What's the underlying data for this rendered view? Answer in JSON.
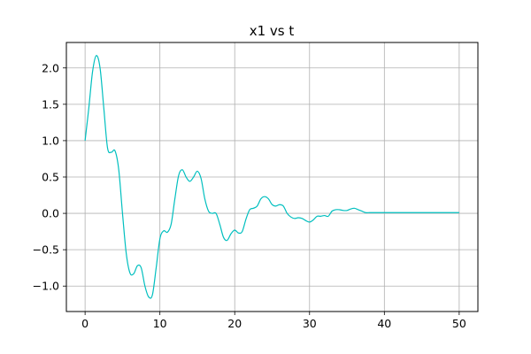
{
  "chart_data": {
    "type": "line",
    "title": "x1 vs t",
    "xlabel": "",
    "ylabel": "",
    "xlim": [
      -2.5,
      52.5
    ],
    "ylim": [
      -1.35,
      2.35
    ],
    "xticks": [
      0,
      10,
      20,
      30,
      40,
      50
    ],
    "xtick_labels": [
      "0",
      "10",
      "20",
      "30",
      "40",
      "50"
    ],
    "yticks": [
      -1.0,
      -0.5,
      0.0,
      0.5,
      1.0,
      1.5,
      2.0
    ],
    "ytick_labels": [
      "−1.0",
      "−0.5",
      "0.0",
      "0.5",
      "1.0",
      "1.5",
      "2.0"
    ],
    "grid": true,
    "legend": "none",
    "series": [
      {
        "color": "#00bfbf",
        "x": [
          0,
          0.5,
          1.0,
          1.5,
          2.0,
          2.5,
          3.0,
          3.5,
          4.0,
          4.5,
          5.0,
          5.5,
          6.0,
          6.5,
          7.0,
          7.5,
          8.0,
          8.5,
          9.0,
          9.5,
          10.0,
          10.5,
          11.0,
          11.5,
          12.0,
          12.5,
          13.0,
          13.5,
          14.0,
          14.5,
          15.0,
          15.5,
          16.0,
          16.5,
          17.0,
          17.5,
          18.0,
          18.5,
          19.0,
          19.5,
          20.0,
          20.5,
          21.0,
          21.5,
          22.0,
          22.5,
          23.0,
          23.5,
          24.0,
          24.5,
          25.0,
          25.5,
          26.0,
          26.5,
          27.0,
          27.5,
          28.0,
          28.5,
          29.0,
          29.5,
          30.0,
          30.5,
          31.0,
          31.5,
          32.0,
          32.5,
          33.0,
          33.5,
          34.0,
          34.5,
          35.0,
          35.5,
          36.0,
          36.5,
          37.0,
          37.5,
          38.0,
          38.5,
          39.0,
          39.5,
          40.0,
          40.5,
          41.0,
          41.5,
          42.0,
          42.5,
          43.0,
          43.5,
          44.0,
          44.5,
          45.0,
          45.5,
          46.0,
          46.5,
          47.0,
          47.5,
          48.0,
          48.5,
          49.0,
          49.5,
          50.0
        ],
        "y": [
          1.0,
          1.45,
          1.95,
          2.17,
          2.0,
          1.45,
          0.9,
          0.84,
          0.86,
          0.6,
          0.0,
          -0.55,
          -0.82,
          -0.83,
          -0.72,
          -0.75,
          -1.0,
          -1.15,
          -1.12,
          -0.75,
          -0.35,
          -0.24,
          -0.26,
          -0.15,
          0.2,
          0.52,
          0.6,
          0.5,
          0.44,
          0.5,
          0.58,
          0.48,
          0.2,
          0.03,
          0.0,
          0.0,
          -0.15,
          -0.33,
          -0.37,
          -0.28,
          -0.23,
          -0.27,
          -0.25,
          -0.08,
          0.05,
          0.07,
          0.1,
          0.2,
          0.23,
          0.2,
          0.12,
          0.1,
          0.12,
          0.1,
          0.0,
          -0.05,
          -0.07,
          -0.06,
          -0.07,
          -0.1,
          -0.12,
          -0.09,
          -0.04,
          -0.04,
          -0.03,
          -0.04,
          0.03,
          0.05,
          0.05,
          0.04,
          0.04,
          0.06,
          0.07,
          0.05,
          0.03,
          0.01,
          0.01,
          0.01,
          0.01,
          0.01,
          0.01,
          0.01,
          0.01,
          0.01,
          0.01,
          0.01,
          0.01,
          0.01,
          0.01,
          0.01,
          0.01,
          0.01,
          0.01,
          0.01,
          0.01,
          0.01,
          0.01,
          0.01,
          0.01,
          0.01,
          0.01
        ]
      }
    ]
  }
}
